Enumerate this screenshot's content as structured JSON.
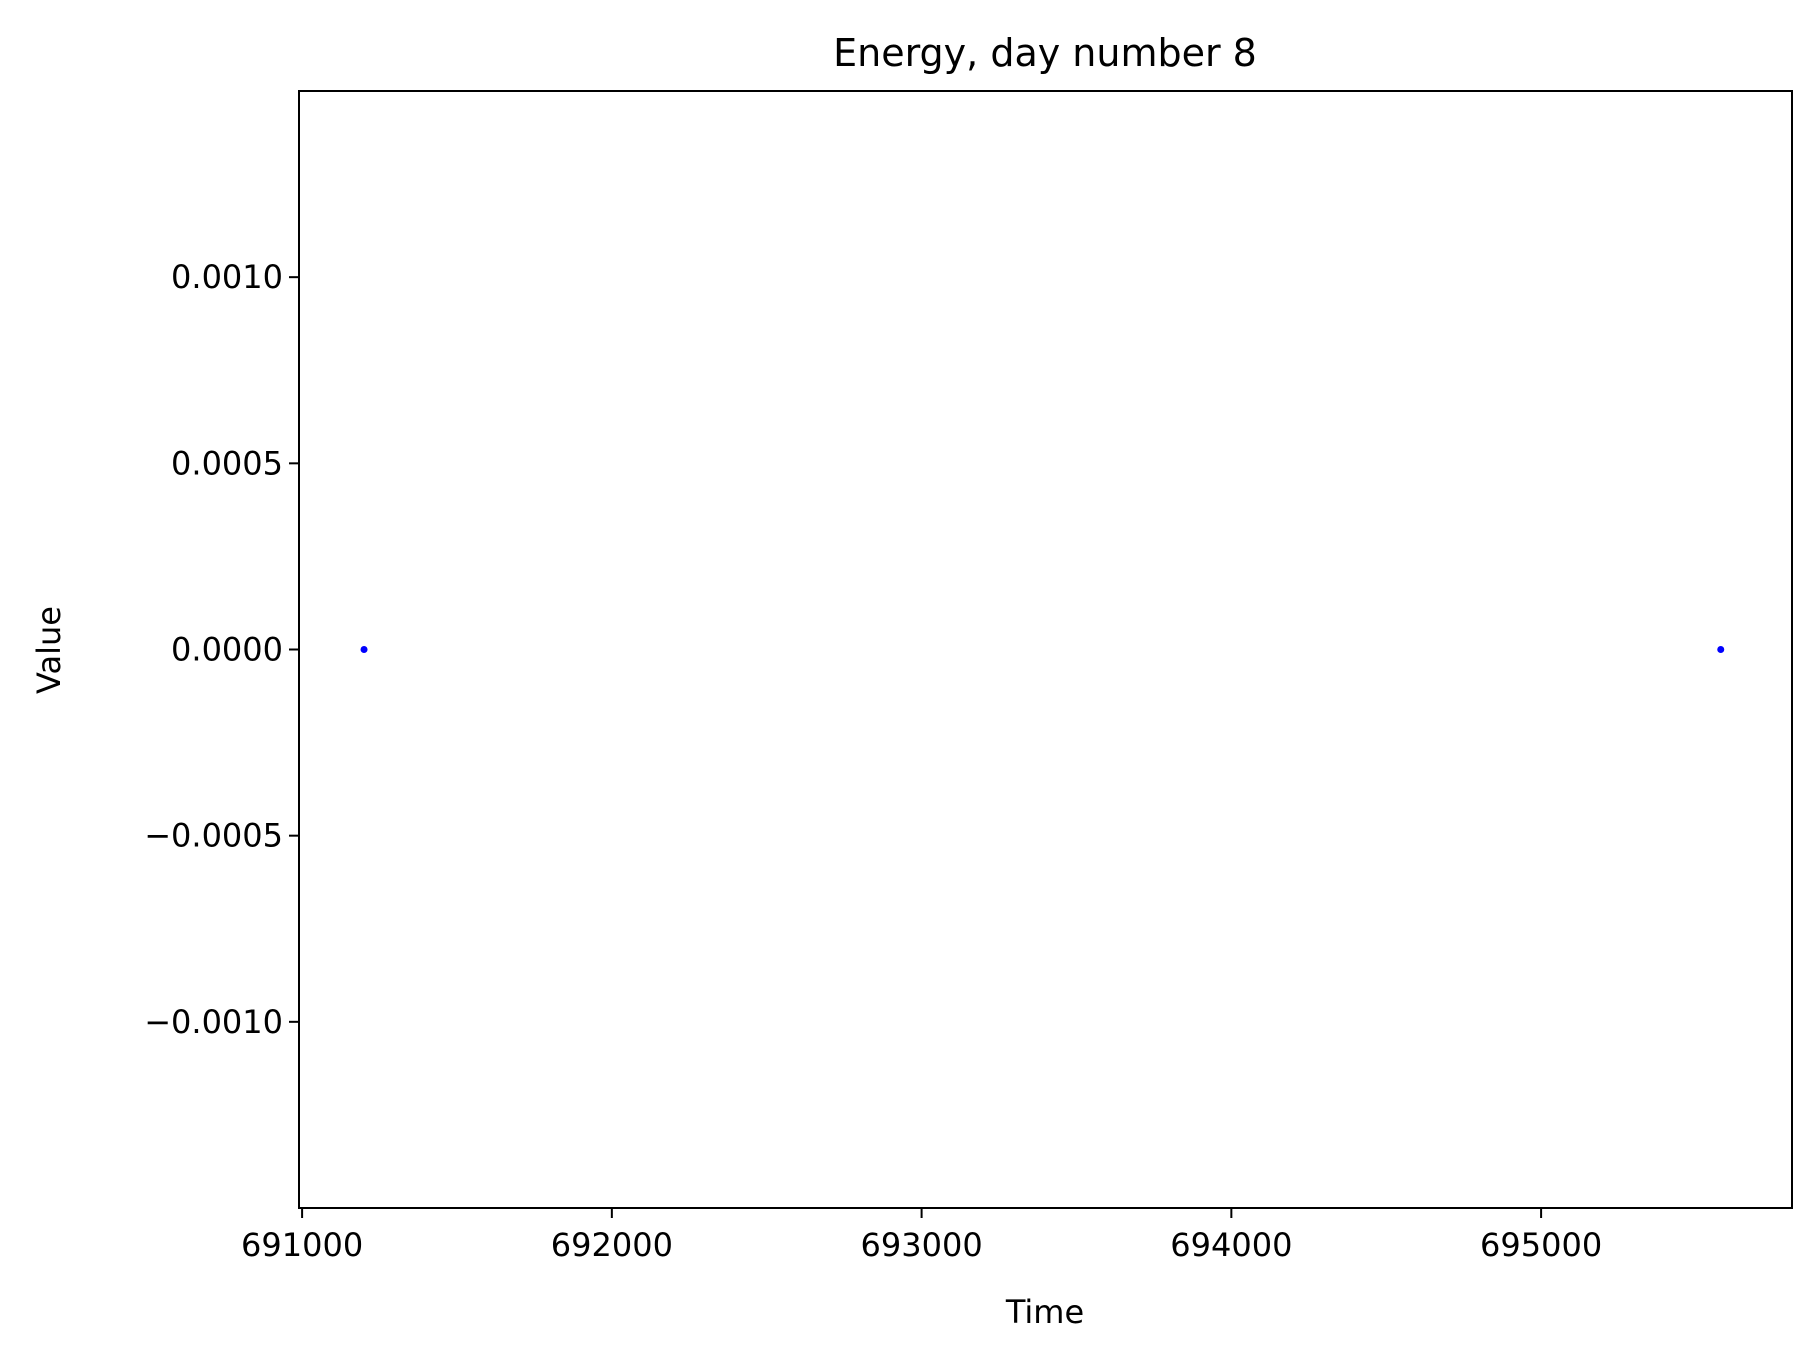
{
  "chart_data": {
    "type": "scatter",
    "title": "Energy, day number 8",
    "xlabel": "Time",
    "ylabel": "Value",
    "xlim": [
      690990,
      695810
    ],
    "ylim": [
      -0.0015,
      0.0015
    ],
    "x_ticks": [
      691000,
      692000,
      693000,
      694000,
      695000
    ],
    "x_tick_labels": [
      "691000",
      "692000",
      "693000",
      "694000",
      "695000"
    ],
    "y_ticks": [
      -0.001,
      -0.0005,
      0.0,
      0.0005,
      0.001
    ],
    "y_tick_labels": [
      "−0.0010",
      "−0.0005",
      "0.0000",
      "0.0005",
      "0.0010"
    ],
    "grid": false,
    "series": [
      {
        "name": "Energy",
        "color": "#0000ff",
        "points": [
          {
            "x": 691200,
            "y": 0.0
          },
          {
            "x": 695580,
            "y": 0.0
          }
        ]
      }
    ]
  }
}
